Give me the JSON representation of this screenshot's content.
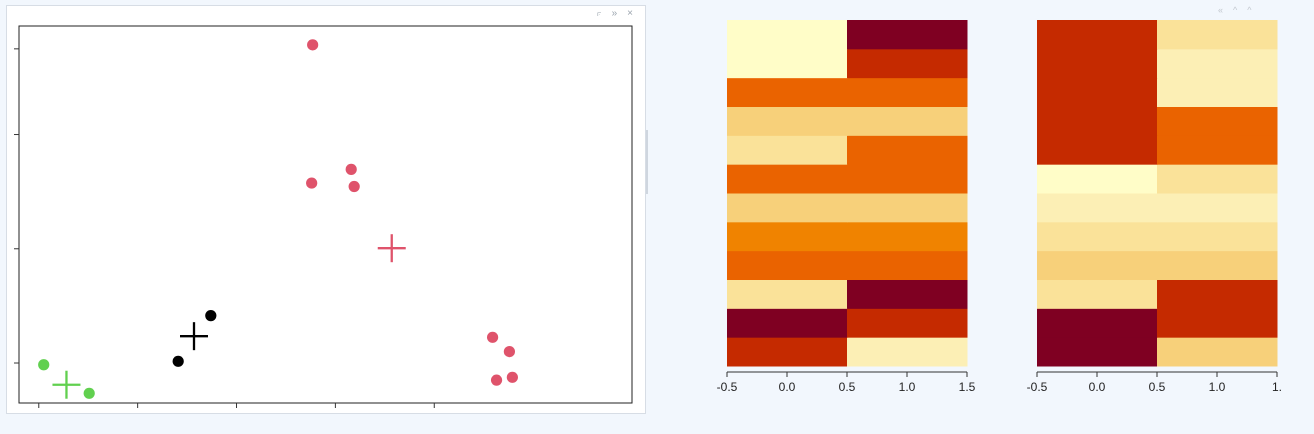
{
  "ui": {
    "left_controls": [
      "⟔",
      "»",
      "×"
    ],
    "right_controls": [
      "«",
      "^",
      "^"
    ]
  },
  "chart_data": [
    {
      "type": "scatter",
      "xlim": [
        -2.7,
        3.5
      ],
      "ylim": [
        -2.7,
        3.9
      ],
      "axes": {
        "x_ticks": [
          -2.5,
          -1.5,
          -0.5,
          0.5,
          1.5
        ],
        "y_ticks": [
          -2,
          0,
          2,
          3.5
        ]
      },
      "points": [
        {
          "x": -2.45,
          "y": -2.03,
          "cluster": 3
        },
        {
          "x": -1.99,
          "y": -2.53,
          "cluster": 3
        },
        {
          "x": -1.09,
          "y": -1.97,
          "cluster": 1
        },
        {
          "x": -0.76,
          "y": -1.17,
          "cluster": 1
        },
        {
          "x": 0.27,
          "y": 3.57,
          "cluster": 2
        },
        {
          "x": 0.26,
          "y": 1.15,
          "cluster": 2
        },
        {
          "x": 0.66,
          "y": 1.39,
          "cluster": 2
        },
        {
          "x": 0.69,
          "y": 1.09,
          "cluster": 2
        },
        {
          "x": 2.09,
          "y": -1.55,
          "cluster": 2
        },
        {
          "x": 2.26,
          "y": -1.8,
          "cluster": 2
        },
        {
          "x": 2.13,
          "y": -2.3,
          "cluster": 2
        },
        {
          "x": 2.29,
          "y": -2.25,
          "cluster": 2
        }
      ],
      "centers": [
        {
          "x": -0.93,
          "y": -1.53,
          "cluster": 1
        },
        {
          "x": 1.07,
          "y": 0.01,
          "cluster": 2
        },
        {
          "x": -2.22,
          "y": -2.38,
          "cluster": 3
        }
      ],
      "colors": {
        "1": "#000000",
        "2": "#df536b",
        "3": "#61d04f"
      },
      "grid": false
    },
    {
      "type": "heatmap",
      "xlim": [
        -0.5,
        1.5
      ],
      "x_ticks": [
        "-0.5",
        "0.0",
        "0.5",
        "1.0",
        "1.5"
      ],
      "columns": 2,
      "values": [
        [
          0.35,
          1.25
        ],
        [
          0.18,
          0.2
        ],
        [
          1.05,
          0.15
        ],
        [
          0.6,
          0.4
        ],
        [
          0.7,
          0.7
        ],
        [
          0.9,
          0.9
        ],
        [
          0.45,
          0.45
        ],
        [
          1.1,
          0.4
        ],
        [
          0.9,
          0.9
        ],
        [
          0.5,
          0.5
        ],
        [
          1.55,
          0.3
        ],
        [
          1.55,
          0.15
        ]
      ],
      "palette": [
        "#7f0022",
        "#c52a00",
        "#ea6300",
        "#f08300",
        "#f7d07a",
        "#fae299",
        "#fcefb5",
        "#fffdc8"
      ]
    },
    {
      "type": "heatmap",
      "xlim": [
        -0.5,
        1.5
      ],
      "x_ticks": [
        "-0.5",
        "0.0",
        "0.5",
        "1.0",
        "1."
      ],
      "columns": 2,
      "values": [
        [
          0.08,
          0.85
        ],
        [
          0.08,
          0.32
        ],
        [
          1.1,
          0.2
        ],
        [
          0.95,
          0.95
        ],
        [
          1.1,
          1.1
        ],
        [
          1.3,
          1.3
        ],
        [
          1.5,
          1.05
        ],
        [
          0.2,
          0.55
        ],
        [
          0.2,
          0.55
        ],
        [
          0.2,
          1.3
        ],
        [
          0.2,
          1.3
        ],
        [
          0.2,
          1.15
        ]
      ],
      "palette": [
        "#7f0022",
        "#c52a00",
        "#ea6300",
        "#f08300",
        "#f7d07a",
        "#fae299",
        "#fcefb5",
        "#fffdc8"
      ]
    }
  ]
}
